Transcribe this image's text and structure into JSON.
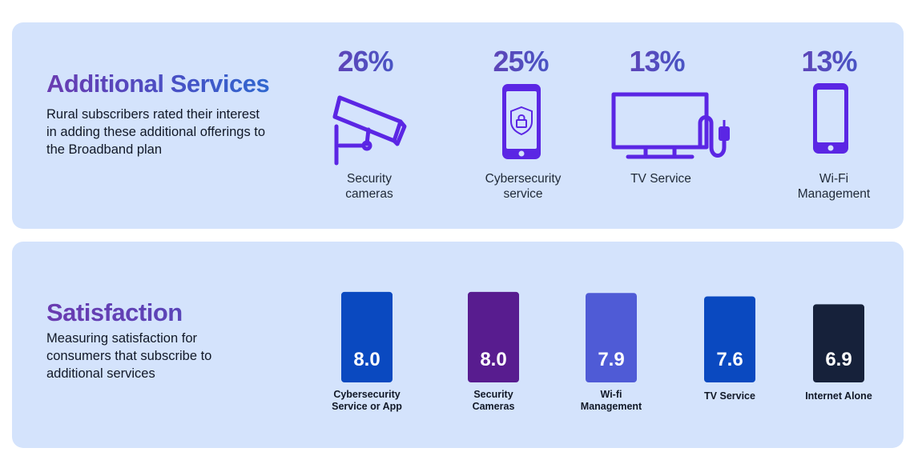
{
  "services": {
    "title": "Additional Services",
    "description": [
      "Rural subscribers rated their interest",
      "in adding these additional offerings to",
      "the Broadband plan"
    ],
    "items": [
      {
        "pct_label": "26%",
        "value": 26,
        "label": [
          "Security",
          "cameras"
        ],
        "icon": "security-camera-icon"
      },
      {
        "pct_label": "25%",
        "value": 25,
        "label": [
          "Cybersecurity",
          "service"
        ],
        "icon": "smartphone-shield-icon"
      },
      {
        "pct_label": "13%",
        "value": 13,
        "label": [
          "TV Service"
        ],
        "icon": "tv-icon"
      },
      {
        "pct_label": "13%",
        "value": 13,
        "label": [
          "Wi-Fi",
          "Management"
        ],
        "icon": "smartphone-icon"
      }
    ]
  },
  "satisfaction": {
    "title": "Satisfaction",
    "description": [
      "Measuring satisfaction for",
      "consumers that subscribe to",
      "additional services"
    ]
  },
  "chart_data": {
    "type": "bar",
    "categories": [
      [
        "Cybersecurity",
        "Service or App"
      ],
      [
        "Security",
        "Cameras"
      ],
      [
        "Wi-fi",
        "Management"
      ],
      [
        "TV Service"
      ],
      [
        "Internet Alone"
      ]
    ],
    "values": [
      8.0,
      8.0,
      7.9,
      7.6,
      6.9
    ],
    "value_labels": [
      "8.0",
      "8.0",
      "7.9",
      "7.6",
      "6.9"
    ],
    "colors": [
      "#0a49c0",
      "#581c8f",
      "#4f5bd6",
      "#0a49c0",
      "#16213a"
    ],
    "ylim": [
      0,
      8.2
    ]
  }
}
